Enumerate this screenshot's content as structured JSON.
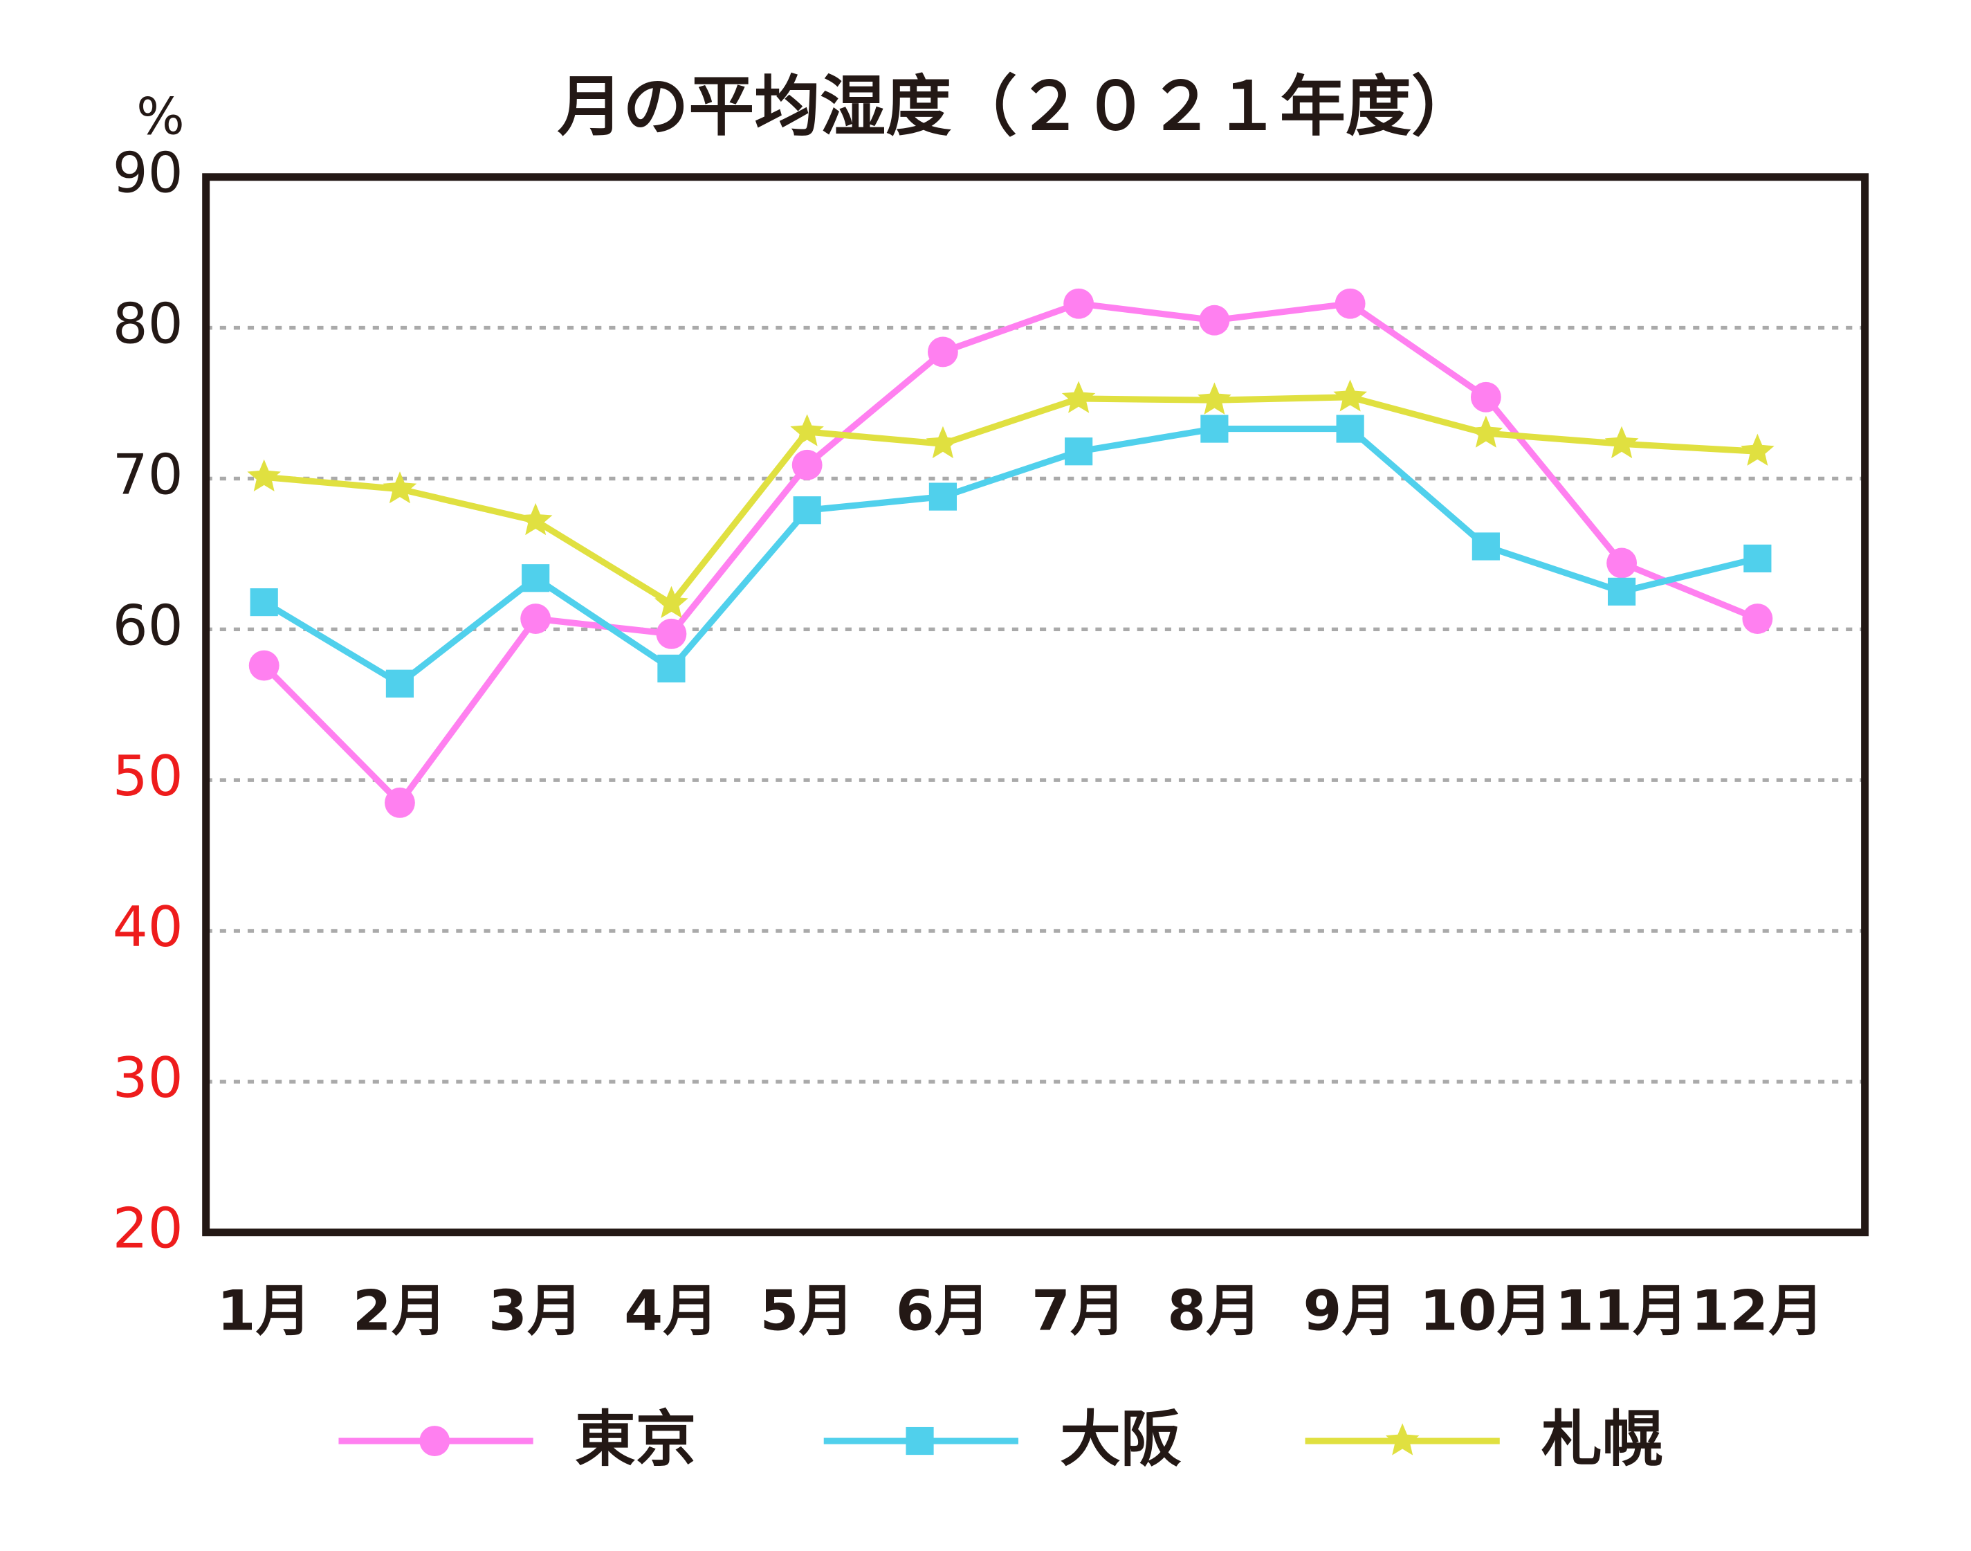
{
  "chart_data": {
    "type": "line",
    "title": "月の平均湿度（２０２１年度）",
    "ylabel": "%",
    "categories": [
      "1月",
      "2月",
      "3月",
      "4月",
      "5月",
      "6月",
      "7月",
      "8月",
      "9月",
      "10月",
      "11月",
      "12月"
    ],
    "series": [
      {
        "name": "東京",
        "color": "#ff80f0",
        "marker": "circle",
        "values": [
          57.6,
          48.5,
          60.7,
          59.7,
          70.9,
          78.4,
          81.6,
          80.5,
          81.6,
          75.4,
          64.4,
          60.7
        ]
      },
      {
        "name": "大阪",
        "color": "#50d0ec",
        "marker": "square",
        "values": [
          61.8,
          56.4,
          63.4,
          57.4,
          67.9,
          68.8,
          71.8,
          73.3,
          73.3,
          65.5,
          62.5,
          64.7
        ]
      },
      {
        "name": "札幌",
        "color": "#e0e040",
        "marker": "star",
        "values": [
          70.1,
          69.3,
          67.2,
          61.7,
          73.1,
          72.3,
          75.3,
          75.2,
          75.4,
          73.0,
          72.3,
          71.8
        ]
      }
    ],
    "ylim": [
      20,
      90
    ],
    "yticks": [
      20,
      30,
      40,
      50,
      60,
      70,
      80,
      90
    ],
    "ytick_label_colors": [
      "#ee1c1c",
      "#ee1c1c",
      "#ee1c1c",
      "#ee1c1c",
      "#231815",
      "#231815",
      "#231815",
      "#231815"
    ],
    "grid": true,
    "legend": "bottom"
  }
}
